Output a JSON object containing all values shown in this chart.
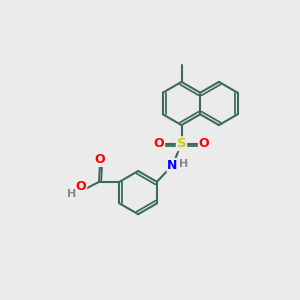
{
  "bg_color": "#ebebeb",
  "bond_color": "#3a6b5a",
  "bond_lw": 1.5,
  "atom_colors": {
    "O": "#ff0000",
    "S": "#cccc00",
    "N": "#0000ff",
    "H": "#888888",
    "C": "#3a6b5a"
  },
  "figsize": [
    3.0,
    3.0
  ],
  "dpi": 100,
  "s": 0.72
}
